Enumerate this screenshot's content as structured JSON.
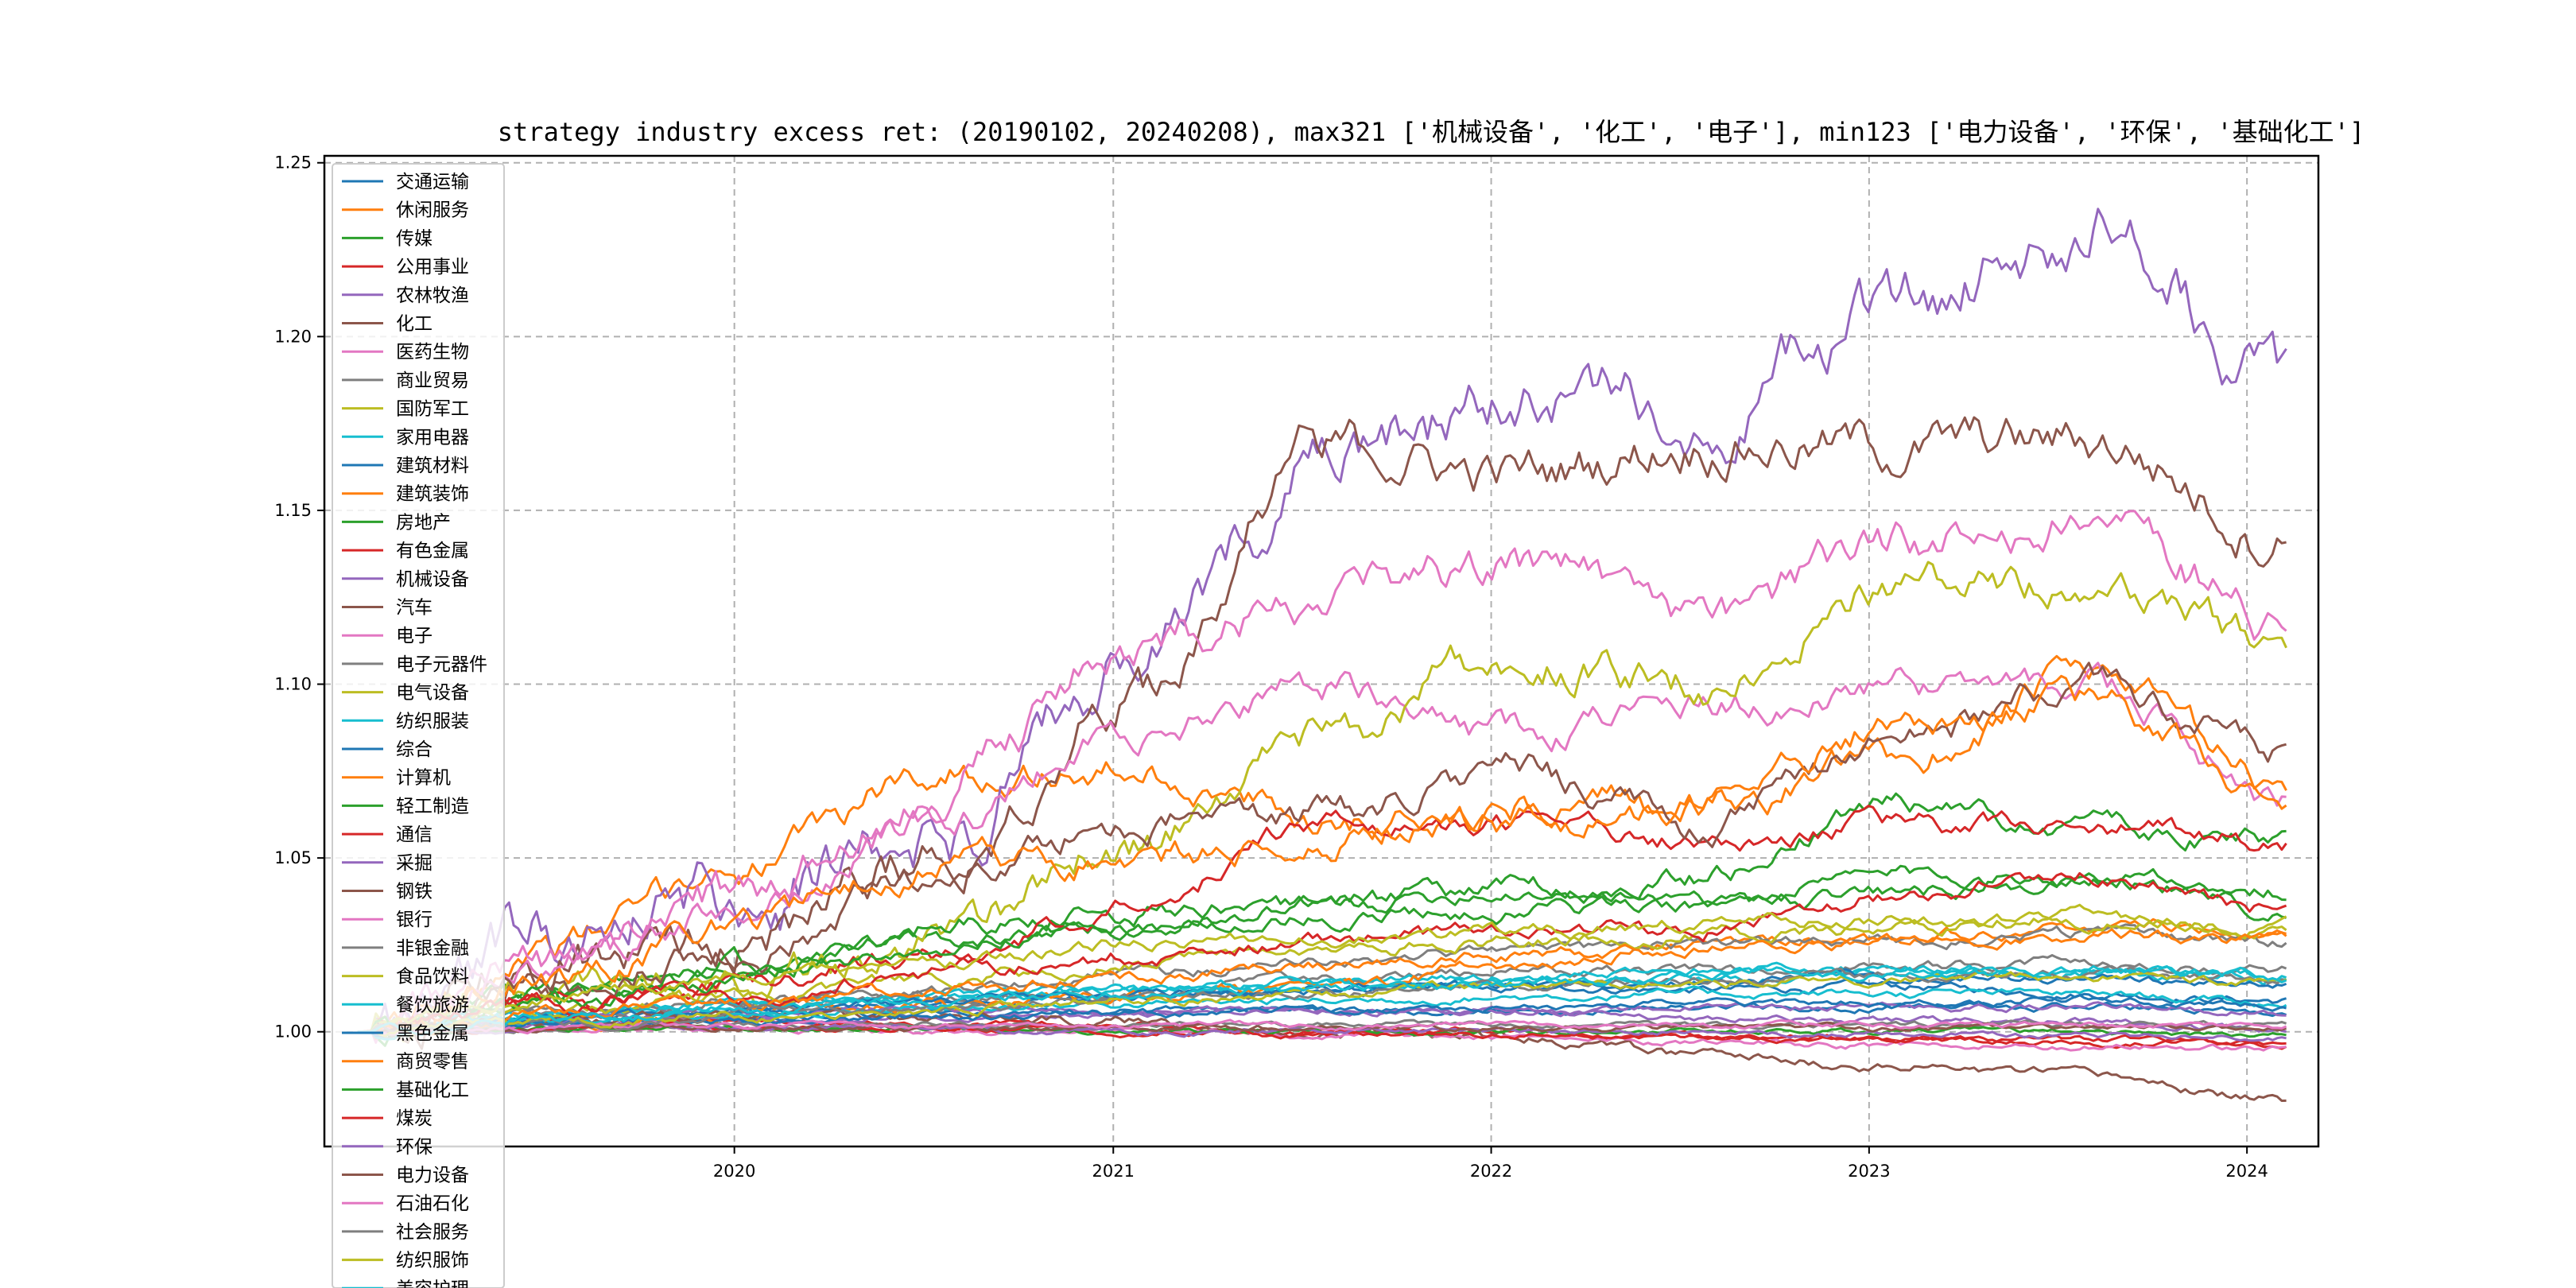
{
  "chart_data": {
    "type": "line",
    "title": "strategy industry excess ret: (20190102, 20240208), max321 ['机械设备', '化工', '电子'], min123 ['电力设备', '环保', '基础化工']",
    "xlabel": "",
    "ylabel": "",
    "x_range": [
      "2019-01-02",
      "2024-02-08"
    ],
    "xlim": [
      "2018-12-01",
      "2024-03-10"
    ],
    "ylim": [
      0.967,
      1.252
    ],
    "x_ticks": [
      "2020",
      "2021",
      "2022",
      "2023",
      "2024"
    ],
    "y_ticks": [
      "1.00",
      "1.05",
      "1.10",
      "1.15",
      "1.20",
      "1.25"
    ],
    "grid": true,
    "legend_placement": "upper-left",
    "series": [
      {
        "name": "交通运输",
        "color": "#1f77b4",
        "anchors": [
          1.0,
          1.004,
          1.006,
          1.008,
          1.01,
          1.012,
          1.013,
          1.012,
          1.013,
          1.011,
          1.009
        ]
      },
      {
        "name": "休闲服务",
        "color": "#ff7f0e",
        "anchors": [
          1.0,
          1.025,
          1.048,
          1.075,
          1.075,
          1.061,
          1.065,
          1.065,
          1.078,
          1.103,
          1.07
        ]
      },
      {
        "name": "传媒",
        "color": "#2ca02c",
        "anchors": [
          1.0,
          1.012,
          1.018,
          1.027,
          1.03,
          1.036,
          1.041,
          1.037,
          1.045,
          1.045,
          1.035
        ]
      },
      {
        "name": "公用事业",
        "color": "#d62728",
        "anchors": [
          1.0,
          1.004,
          1.003,
          1.003,
          1.002,
          1.0,
          1.0,
          0.999,
          0.998,
          0.997,
          0.996
        ]
      },
      {
        "name": "农林牧渔",
        "color": "#9467bd",
        "anchors": [
          1.0,
          1.03,
          1.04,
          1.056,
          1.105,
          1.16,
          1.18,
          1.18,
          1.21,
          1.233,
          1.185
        ]
      },
      {
        "name": "化工",
        "color": "#8c564b",
        "anchors": [
          1.0,
          1.02,
          1.03,
          1.05,
          1.095,
          1.17,
          1.16,
          1.17,
          1.168,
          1.17,
          1.143
        ]
      },
      {
        "name": "医药生物",
        "color": "#e377c2",
        "anchors": [
          1.0,
          1.02,
          1.035,
          1.06,
          1.085,
          1.1,
          1.085,
          1.093,
          1.1,
          1.1,
          1.065
        ]
      },
      {
        "name": "商业贸易",
        "color": "#7f7f7f",
        "anchors": [
          1.0,
          1.005,
          1.008,
          1.01,
          1.012,
          1.015,
          1.017,
          1.018,
          1.019,
          1.02,
          1.018
        ]
      },
      {
        "name": "国防军工",
        "color": "#bcbd22",
        "anchors": [
          1.0,
          1.01,
          1.015,
          1.025,
          1.055,
          1.085,
          1.108,
          1.1,
          1.13,
          1.13,
          1.11
        ]
      },
      {
        "name": "家用电器",
        "color": "#17becf",
        "anchors": [
          1.0,
          1.005,
          1.008,
          1.01,
          1.012,
          1.014,
          1.016,
          1.018,
          1.018,
          1.017,
          1.015
        ]
      },
      {
        "name": "建筑材料",
        "color": "#1f77b4",
        "anchors": [
          1.0,
          1.003,
          1.004,
          1.005,
          1.006,
          1.006,
          1.006,
          1.007,
          1.007,
          1.007,
          1.006
        ]
      },
      {
        "name": "建筑装饰",
        "color": "#ff7f0e",
        "anchors": [
          1.0,
          1.003,
          1.005,
          1.007,
          1.009,
          1.012,
          1.02,
          1.025,
          1.028,
          1.03,
          1.03
        ]
      },
      {
        "name": "房地产",
        "color": "#2ca02c",
        "anchors": [
          1.0,
          1.01,
          1.02,
          1.03,
          1.035,
          1.038,
          1.04,
          1.045,
          1.065,
          1.06,
          1.055
        ]
      },
      {
        "name": "有色金属",
        "color": "#d62728",
        "anchors": [
          1.0,
          1.01,
          1.015,
          1.022,
          1.035,
          1.06,
          1.06,
          1.055,
          1.06,
          1.058,
          1.055
        ]
      },
      {
        "name": "机械设备",
        "color": "#9467bd",
        "anchors": [
          1.0,
          1.003,
          1.005,
          1.006,
          1.006,
          1.006,
          1.006,
          1.007,
          1.007,
          1.007,
          1.006
        ]
      },
      {
        "name": "汽车",
        "color": "#8c564b",
        "anchors": [
          1.0,
          1.015,
          1.025,
          1.045,
          1.06,
          1.063,
          1.075,
          1.06,
          1.085,
          1.1,
          1.08
        ]
      },
      {
        "name": "电子",
        "color": "#e377c2",
        "anchors": [
          1.0,
          1.02,
          1.04,
          1.07,
          1.11,
          1.125,
          1.135,
          1.12,
          1.14,
          1.148,
          1.118
        ]
      },
      {
        "name": "电子元器件",
        "color": "#7f7f7f",
        "anchors": [
          1.0,
          1.005,
          1.008,
          1.012,
          1.016,
          1.02,
          1.023,
          1.025,
          1.026,
          1.028,
          1.025
        ]
      },
      {
        "name": "电气设备",
        "color": "#bcbd22",
        "anchors": [
          1.0,
          1.005,
          1.01,
          1.015,
          1.02,
          1.023,
          1.026,
          1.028,
          1.03,
          1.032,
          1.03
        ]
      },
      {
        "name": "纺织服装",
        "color": "#17becf",
        "anchors": [
          1.0,
          1.005,
          1.008,
          1.01,
          1.012,
          1.014,
          1.015,
          1.016,
          1.017,
          1.017,
          1.016
        ]
      },
      {
        "name": "综合",
        "color": "#1f77b4",
        "anchors": [
          1.0,
          1.004,
          1.006,
          1.009,
          1.011,
          1.012,
          1.013,
          1.014,
          1.015,
          1.015,
          1.013
        ]
      },
      {
        "name": "计算机",
        "color": "#ff7f0e",
        "anchors": [
          1.0,
          1.015,
          1.03,
          1.048,
          1.05,
          1.055,
          1.06,
          1.065,
          1.09,
          1.095,
          1.065
        ]
      },
      {
        "name": "轻工制造",
        "color": "#2ca02c",
        "anchors": [
          1.0,
          1.008,
          1.015,
          1.025,
          1.03,
          1.033,
          1.035,
          1.036,
          1.04,
          1.044,
          1.04
        ]
      },
      {
        "name": "通信",
        "color": "#d62728",
        "anchors": [
          1.0,
          1.008,
          1.012,
          1.018,
          1.022,
          1.026,
          1.028,
          1.03,
          1.04,
          1.045,
          1.035
        ]
      },
      {
        "name": "采掘",
        "color": "#9467bd",
        "anchors": [
          1.0,
          1.002,
          1.003,
          1.004,
          1.005,
          1.006,
          1.006,
          1.004,
          1.003,
          1.003,
          1.0
        ]
      },
      {
        "name": "钢铁",
        "color": "#8c564b",
        "anchors": [
          1.0,
          1.003,
          1.004,
          1.004,
          1.003,
          1.0,
          0.998,
          0.993,
          0.99,
          0.987,
          0.98
        ]
      },
      {
        "name": "银行",
        "color": "#e377c2",
        "anchors": [
          1.0,
          1.001,
          1.001,
          1.0,
          1.0,
          0.999,
          0.998,
          0.997,
          0.996,
          0.996,
          0.995
        ]
      },
      {
        "name": "非银金融",
        "color": "#7f7f7f",
        "anchors": [
          1.0,
          1.001,
          1.002,
          1.002,
          1.002,
          1.002,
          1.002,
          1.002,
          1.002,
          1.002,
          1.002
        ]
      },
      {
        "name": "食品饮料",
        "color": "#bcbd22",
        "anchors": [
          1.0,
          1.01,
          1.015,
          1.02,
          1.025,
          1.027,
          1.029,
          1.031,
          1.032,
          1.033,
          1.03
        ]
      },
      {
        "name": "餐饮旅游",
        "color": "#17becf",
        "anchors": [
          1.0,
          1.003,
          1.005,
          1.007,
          1.008,
          1.009,
          1.01,
          1.011,
          1.011,
          1.011,
          1.008
        ]
      },
      {
        "name": "黑色金属",
        "color": "#1f77b4",
        "anchors": [
          1.0,
          1.002,
          1.003,
          1.004,
          1.005,
          1.006,
          1.007,
          1.008,
          1.008,
          1.009,
          1.008
        ]
      },
      {
        "name": "商贸零售",
        "color": "#ff7f0e",
        "anchors": [
          1.0,
          1.005,
          1.008,
          1.012,
          1.016,
          1.019,
          1.022,
          1.024,
          1.026,
          1.028,
          1.026
        ]
      },
      {
        "name": "基础化工",
        "color": "#2ca02c",
        "anchors": [
          1.0,
          1.001,
          1.001,
          1.001,
          1.0,
          1.0,
          1.0,
          1.0,
          1.0,
          1.0,
          0.999
        ]
      },
      {
        "name": "煤炭",
        "color": "#d62728",
        "anchors": [
          1.0,
          1.001,
          1.001,
          1.001,
          1.0,
          0.999,
          0.999,
          0.998,
          0.998,
          0.998,
          0.997
        ]
      },
      {
        "name": "环保",
        "color": "#9467bd",
        "anchors": [
          1.0,
          1.001,
          1.001,
          1.001,
          1.0,
          1.0,
          1.0,
          1.0,
          0.999,
          0.999,
          0.998
        ]
      },
      {
        "name": "电力设备",
        "color": "#8c564b",
        "anchors": [
          1.0,
          1.001,
          1.001,
          1.001,
          1.001,
          1.001,
          1.001,
          1.001,
          1.001,
          1.001,
          1.001
        ]
      },
      {
        "name": "石油石化",
        "color": "#e377c2",
        "anchors": [
          1.0,
          1.001,
          1.002,
          1.002,
          1.002,
          1.002,
          1.002,
          1.002,
          1.002,
          1.002,
          1.002
        ]
      },
      {
        "name": "社会服务",
        "color": "#7f7f7f",
        "anchors": [
          1.0,
          1.003,
          1.005,
          1.007,
          1.009,
          1.011,
          1.013,
          1.015,
          1.016,
          1.017,
          1.015
        ]
      },
      {
        "name": "纺织服饰",
        "color": "#bcbd22",
        "anchors": [
          1.0,
          1.003,
          1.005,
          1.007,
          1.009,
          1.011,
          1.013,
          1.014,
          1.015,
          1.016,
          1.014
        ]
      },
      {
        "name": "美容护理",
        "color": "#17becf",
        "anchors": [
          1.0,
          1.004,
          1.006,
          1.008,
          1.01,
          1.012,
          1.014,
          1.016,
          1.017,
          1.018,
          1.016
        ]
      }
    ]
  }
}
